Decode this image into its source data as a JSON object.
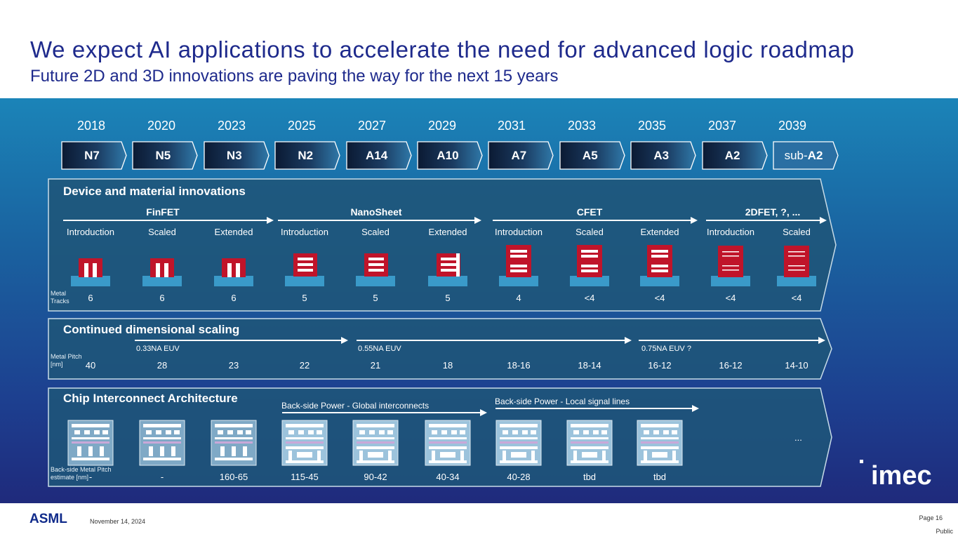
{
  "slide": {
    "title": "We expect AI applications to accelerate the need for advanced logic roadmap",
    "subtitle": "Future 2D and 3D innovations are paving the way for the next 15 years"
  },
  "years": [
    "2018",
    "2020",
    "2023",
    "2025",
    "2027",
    "2029",
    "2031",
    "2033",
    "2035",
    "2037",
    "2039"
  ],
  "nodes": [
    {
      "prefix": "",
      "label": "N7"
    },
    {
      "prefix": "",
      "label": "N5"
    },
    {
      "prefix": "",
      "label": "N3"
    },
    {
      "prefix": "",
      "label": "N2"
    },
    {
      "prefix": "",
      "label": "A14"
    },
    {
      "prefix": "",
      "label": "A10"
    },
    {
      "prefix": "",
      "label": "A7"
    },
    {
      "prefix": "",
      "label": "A5"
    },
    {
      "prefix": "",
      "label": "A3"
    },
    {
      "prefix": "",
      "label": "A2"
    },
    {
      "prefix": "sub-",
      "label": "A2"
    }
  ],
  "device_panel": {
    "title": "Device and material innovations",
    "technologies": [
      "FinFET",
      "NanoSheet",
      "CFET",
      "2DFET, ?, ..."
    ],
    "stages": [
      "Introduction",
      "Scaled",
      "Extended",
      "Introduction",
      "Scaled",
      "Extended",
      "Introduction",
      "Scaled",
      "Extended",
      "Introduction",
      "Scaled"
    ],
    "row_label_1": "Metal",
    "row_label_2": "Tracks",
    "metal_tracks": [
      "6",
      "6",
      "6",
      "5",
      "5",
      "5",
      "4",
      "<4",
      "<4",
      "<4",
      "<4"
    ]
  },
  "scaling_panel": {
    "title": "Continued dimensional scaling",
    "euv_labels": [
      "0.33NA EUV",
      "0.55NA EUV",
      "0.75NA EUV ?"
    ],
    "row_label_1": "Metal Pitch",
    "row_label_2": "[nm]",
    "metal_pitch": [
      "40",
      "28",
      "23",
      "22",
      "21",
      "18",
      "18-16",
      "18-14",
      "16-12",
      "16-12",
      "14-10"
    ]
  },
  "interconnect_panel": {
    "title": "Chip Interconnect Architecture",
    "bsp_global": "Back-side Power - Global interconnects",
    "bsp_local": "Back-side Power - Local signal lines",
    "row_label_1": "Back-side Metal Pitch",
    "row_label_2": "estimate [nm]",
    "backside_pitch": [
      "-",
      "-",
      "160-65",
      "115-45",
      "90-42",
      "40-34",
      "40-28",
      "tbd",
      "tbd"
    ],
    "ellipsis": "..."
  },
  "footer": {
    "logo_text": "ASML",
    "date": "November 14, 2024",
    "page": "Page 16",
    "classification": "Public"
  },
  "partner_logo_text": "imec",
  "colors": {
    "title_blue": "#1e2a8c",
    "transistor_red": "#c0142a",
    "substrate_blue": "#3a9ac9",
    "panel_fill": "#1f5579"
  }
}
